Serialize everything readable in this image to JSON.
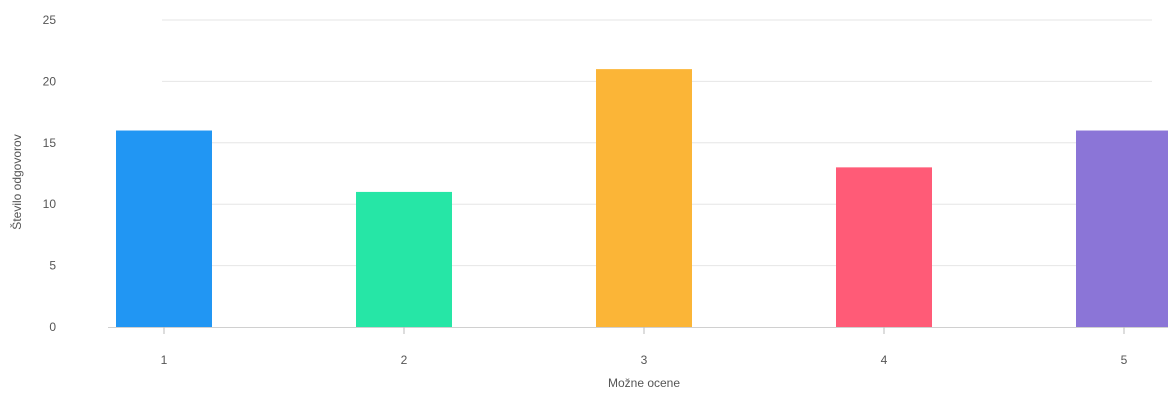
{
  "chart_data": {
    "type": "bar",
    "categories": [
      "1",
      "2",
      "3",
      "4",
      "5"
    ],
    "values": [
      16,
      11,
      21,
      13,
      16
    ],
    "colors": [
      "#2196f3",
      "#26e6a6",
      "#fbb537",
      "#ff5b77",
      "#8b75d7"
    ],
    "title": "",
    "xlabel": "Možne ocene",
    "ylabel": "Število odgovorov",
    "ylim": [
      0,
      25
    ],
    "yticks": [
      0,
      5,
      10,
      15,
      20,
      25
    ],
    "grid": true,
    "legend": "none"
  }
}
